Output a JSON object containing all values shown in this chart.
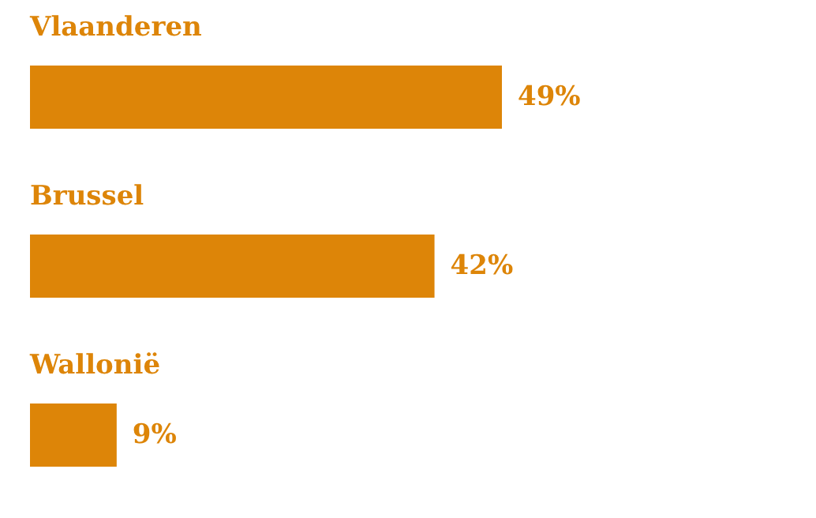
{
  "chart_data": {
    "type": "bar",
    "orientation": "horizontal",
    "categories": [
      "Vlaanderen",
      "Brussel",
      "Wallonië"
    ],
    "values": [
      49,
      42,
      9
    ],
    "value_labels": [
      "49%",
      "42%",
      "9%"
    ],
    "color": "#dd8508"
  }
}
